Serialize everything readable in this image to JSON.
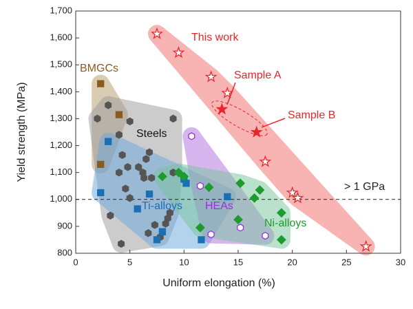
{
  "chart_data": {
    "type": "scatter",
    "x_label": "Uniform elongation (%)",
    "y_label": "Yield strength (MPa)",
    "xlim": [
      0,
      30
    ],
    "xticks": [
      0,
      5,
      10,
      15,
      20,
      25,
      30
    ],
    "ylim": [
      800,
      1700
    ],
    "yticks": [
      {
        "value": 800,
        "label": "800"
      },
      {
        "value": 900,
        "label": "900"
      },
      {
        "value": 1000,
        "label": "1,000"
      },
      {
        "value": 1100,
        "label": "1,100"
      },
      {
        "value": 1200,
        "label": "1,200"
      },
      {
        "value": 1300,
        "label": "1,300"
      },
      {
        "value": 1400,
        "label": "1,400"
      },
      {
        "value": 1500,
        "label": "1,500"
      },
      {
        "value": 1600,
        "label": "1,600"
      },
      {
        "value": 1700,
        "label": "1,700"
      }
    ],
    "reference_line": {
      "value": 1000,
      "label": "> 1 GPa"
    },
    "series": [
      {
        "name": "This work",
        "color": "#e8262a",
        "region_color": "#f26a6a",
        "marker": "star",
        "filled": false,
        "x": [
          7.5,
          9.5,
          12.5,
          14,
          17.5,
          20,
          20.5,
          26.8
        ],
        "values": [
          1615,
          1545,
          1455,
          1395,
          1140,
          1025,
          1005,
          825
        ]
      },
      {
        "name": "Sample A",
        "color": "#e8262a",
        "marker": "star",
        "filled": true,
        "x": [
          13.5
        ],
        "values": [
          1335
        ]
      },
      {
        "name": "Sample B",
        "color": "#e8262a",
        "marker": "star",
        "filled": true,
        "x": [
          16.7
        ],
        "values": [
          1250
        ]
      },
      {
        "name": "BMGCs",
        "color": "#8a5a1e",
        "region_color": "#b49a6a",
        "marker": "square",
        "filled": true,
        "x": [
          2.3,
          4,
          2.3
        ],
        "values": [
          1430,
          1315,
          1130
        ]
      },
      {
        "name": "Steels",
        "color": "#555555",
        "region_color": "#9a9a9a",
        "marker": "hexagon",
        "filled": true,
        "x": [
          3,
          2,
          5,
          4,
          4.3,
          4,
          4.6,
          5.8,
          6.2,
          6.5,
          6.8,
          7,
          6.3,
          4.8,
          3.2,
          5,
          4.2,
          6.7,
          7.8,
          7.3,
          8.3,
          8.5,
          8.7,
          9,
          9
        ],
        "values": [
          1350,
          1300,
          1290,
          1240,
          1165,
          1100,
          1040,
          1120,
          1100,
          1150,
          1175,
          1080,
          1080,
          1120,
          940,
          1005,
          835,
          875,
          860,
          905,
          910,
          930,
          950,
          1300,
          1100
        ]
      },
      {
        "name": "Ti-alloys",
        "color": "#1a6fb5",
        "region_color": "#6aa8dc",
        "marker": "square",
        "filled": true,
        "x": [
          3,
          2.3,
          5.7,
          6.8,
          8,
          7.5,
          10,
          10.2,
          11.6,
          14
        ],
        "values": [
          1215,
          1025,
          965,
          1020,
          880,
          850,
          1075,
          1060,
          850,
          1010
        ]
      },
      {
        "name": "HEAs",
        "color": "#9b30d9",
        "region_color": "#b070e0",
        "marker": "hexagon",
        "filled": false,
        "x": [
          10.7,
          11.5,
          12.5,
          15.2,
          17.5
        ],
        "values": [
          1235,
          1050,
          870,
          895,
          865
        ]
      },
      {
        "name": "Ni-alloys",
        "color": "#1e9a2e",
        "region_color": "#78c49a",
        "marker": "diamond",
        "filled": true,
        "x": [
          8,
          9.5,
          10,
          12.3,
          15.2,
          17,
          16.5,
          19,
          11.5,
          15,
          19
        ],
        "values": [
          1085,
          1100,
          1085,
          1045,
          1060,
          1035,
          1005,
          950,
          895,
          925,
          850
        ]
      }
    ]
  }
}
